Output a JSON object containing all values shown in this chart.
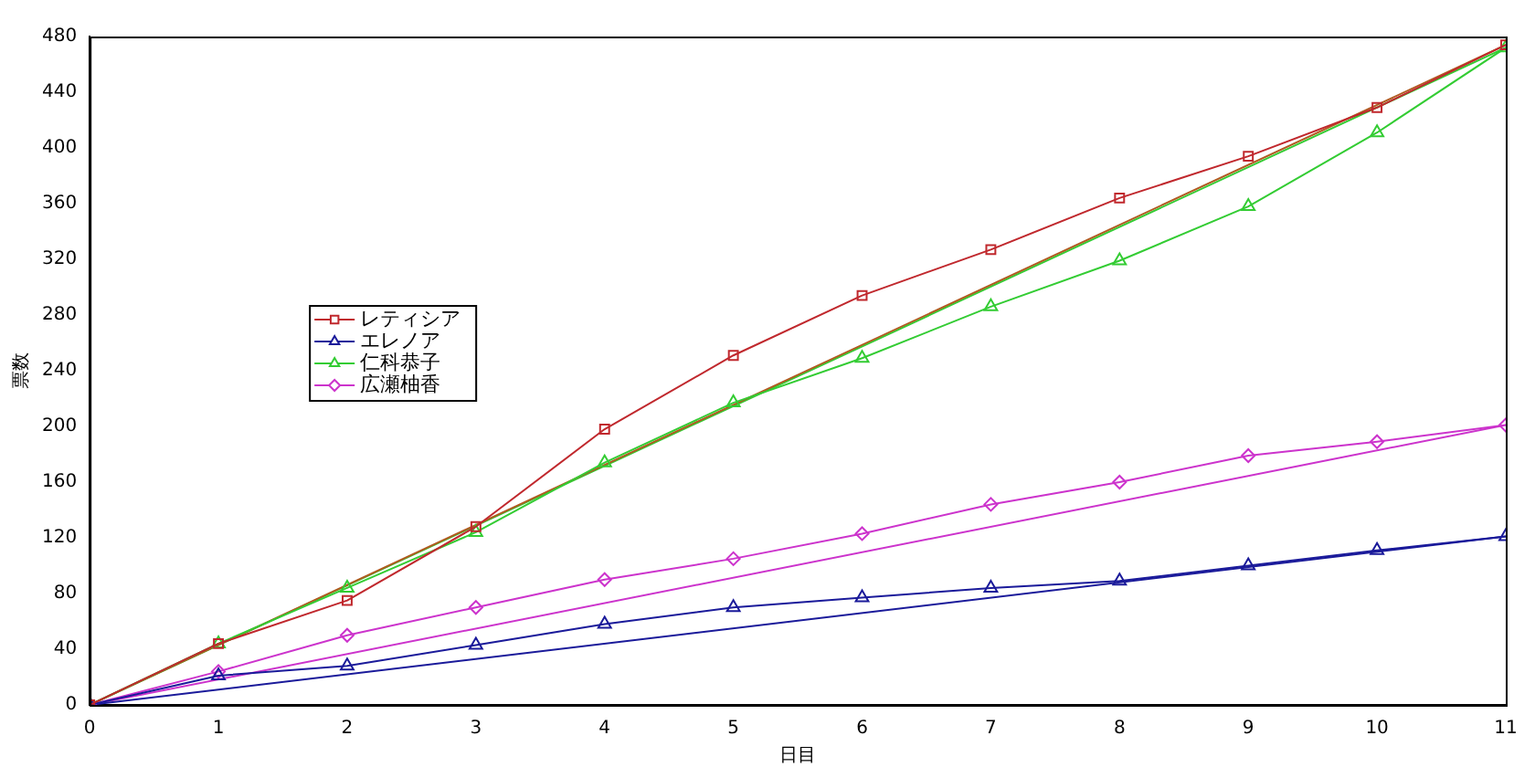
{
  "chart_data": {
    "type": "line",
    "xlabel": "日目",
    "ylabel": "票数",
    "xlim": [
      0,
      11
    ],
    "xticks": [
      0,
      1,
      2,
      3,
      4,
      5,
      6,
      7,
      8,
      9,
      10,
      11
    ],
    "ylim": [
      0,
      480
    ],
    "yticks": [
      0,
      40,
      80,
      120,
      160,
      200,
      240,
      280,
      320,
      360,
      400,
      440,
      480
    ],
    "grid": false,
    "legend": "left",
    "line_style": "solid",
    "series": [
      {
        "name": "レティシア",
        "color": "#c0282d",
        "marker": "square",
        "x": [
          0,
          1,
          2,
          3,
          4,
          5,
          6,
          7,
          8,
          9,
          10,
          11
        ],
        "values": [
          0,
          44,
          75,
          128,
          198,
          251,
          294,
          327,
          364,
          394,
          429,
          474
        ]
      },
      {
        "name": "エレノア",
        "color": "#1a1a9a",
        "marker": "triangle",
        "x": [
          0,
          1,
          2,
          3,
          4,
          5,
          6,
          7,
          8,
          9,
          10,
          11
        ],
        "values": [
          0,
          21,
          28,
          43,
          58,
          70,
          77,
          84,
          89,
          100,
          111,
          121
        ]
      },
      {
        "name": "仁科恭子",
        "color": "#33cc33",
        "marker": "triangle",
        "x": [
          0,
          1,
          2,
          3,
          4,
          5,
          6,
          7,
          8,
          9,
          10,
          11
        ],
        "values": [
          0,
          44,
          84,
          124,
          174,
          217,
          249,
          286,
          319,
          358,
          411,
          472
        ]
      },
      {
        "name": "広瀬柚香",
        "color": "#cc33cc",
        "marker": "diamond",
        "x": [
          0,
          1,
          2,
          3,
          4,
          5,
          6,
          7,
          8,
          9,
          10,
          11
        ],
        "values": [
          0,
          24,
          50,
          70,
          90,
          105,
          123,
          144,
          160,
          179,
          189,
          201
        ]
      },
      {
        "color": "#b05a20",
        "marker": "none",
        "x": [
          0,
          11
        ],
        "values": [
          0,
          474
        ]
      },
      {
        "color": "#1a1a9a",
        "marker": "none",
        "x": [
          0,
          11
        ],
        "values": [
          0,
          121
        ]
      },
      {
        "color": "#33cc33",
        "marker": "none",
        "x": [
          0,
          11
        ],
        "values": [
          0,
          472
        ]
      },
      {
        "color": "#cc33cc",
        "marker": "none",
        "x": [
          0,
          11
        ],
        "values": [
          0,
          201
        ]
      }
    ]
  }
}
